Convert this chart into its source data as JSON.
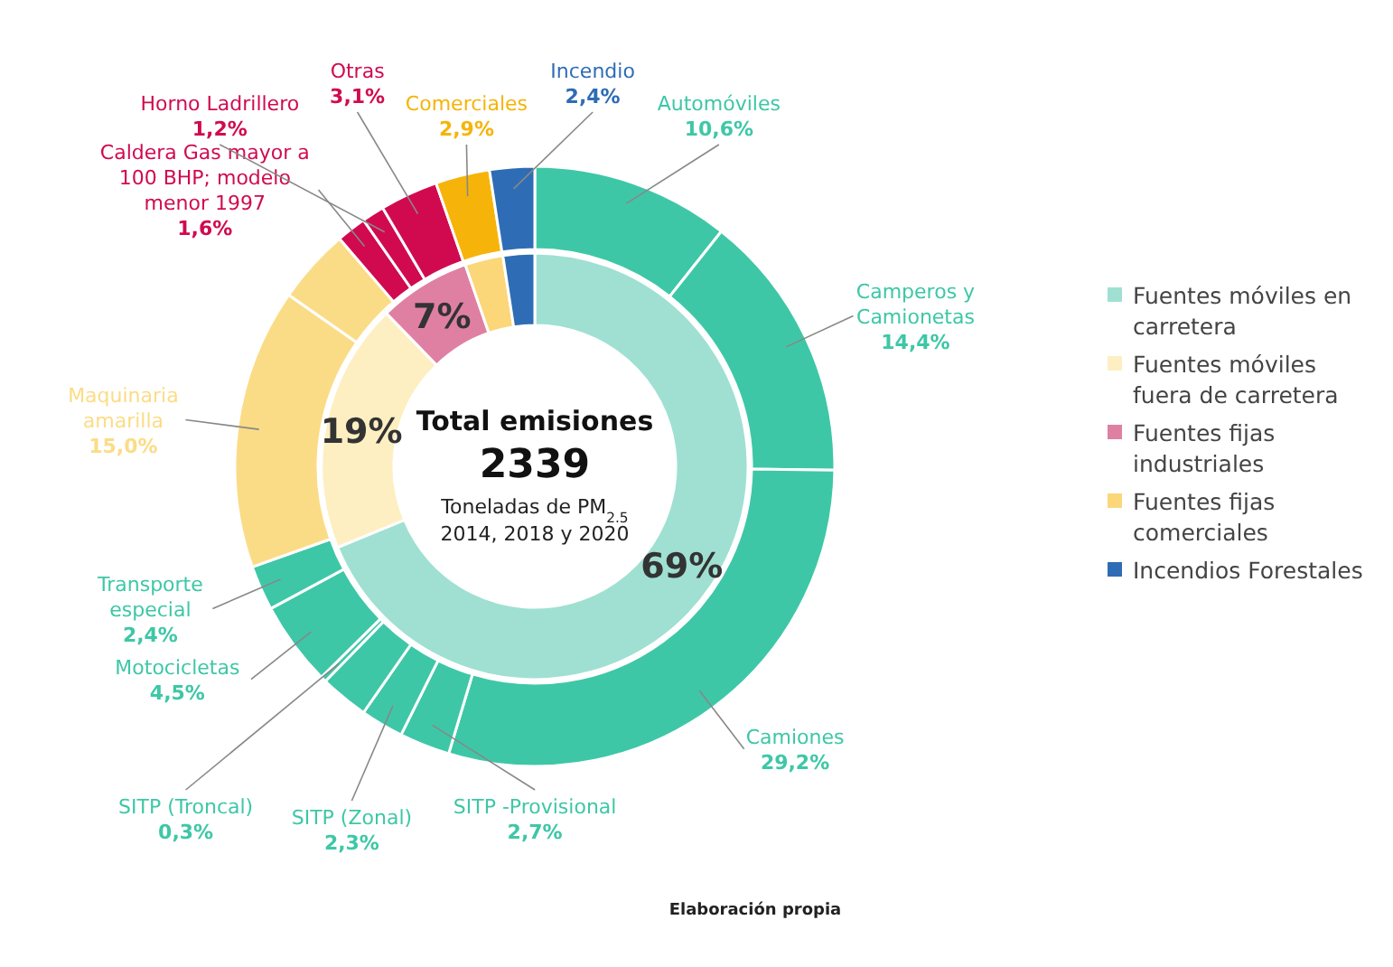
{
  "chart_data": [
    {
      "type": "donut",
      "title": "Total emisiones",
      "annotations": [
        "2339",
        "Toneladas de PM$_{2.5}$",
        "2014, 2018 y 2020",
        "Elaboración propia"
      ],
      "categories": [
        "Fuentes móviles en carretera",
        "Fuentes móviles fuera de carretera",
        "Fuentes fijas industriales",
        "Fuentes fijas comerciales",
        "Incendios Forestales"
      ],
      "values": [
        69,
        19,
        7,
        2.9,
        2.4
      ],
      "colors": [
        "#9fe0d2",
        "#fdefc2",
        "#df80a2",
        "#fbd77a",
        "#2e6db5"
      ],
      "value_labels": [
        "69%",
        "19%",
        "7%",
        null,
        null
      ],
      "legend": "right"
    },
    {
      "type": "donut",
      "categories": [
        "Automóviles",
        "Camperos y Camionetas",
        "Camiones",
        "SITP -Provisional",
        "SITP (Zonal)",
        null,
        "SITP (Troncal)",
        "Motocicletas",
        "Transporte especial",
        "Maquinaria amarilla",
        null,
        "Caldera Gas mayor a 100 BHP; modelo menor 1997",
        "Horno Ladrillero",
        "Otras",
        "Comerciales",
        "Incendio"
      ],
      "values": [
        10.6,
        14.4,
        29.2,
        2.7,
        2.3,
        2.6,
        0.3,
        4.5,
        2.4,
        15.0,
        4.0,
        1.6,
        1.2,
        3.1,
        2.9,
        2.4
      ],
      "colors": [
        "#3ec7a7",
        "#3ec7a7",
        "#3ec7a7",
        "#3ec7a7",
        "#3ec7a7",
        "#3ec7a7",
        "#3ec7a7",
        "#3ec7a7",
        "#3ec7a7",
        "#fbdc86",
        "#fbdc86",
        "#d10a50",
        "#d10a50",
        "#d10a50",
        "#f6b40a",
        "#2e6db5"
      ],
      "value_labels": [
        "10,6%",
        "14,4%",
        "29,2%",
        "2,7%",
        "2,3%",
        null,
        "0,3%",
        "4,5%",
        "2,4%",
        "15,0%",
        null,
        "1,6%",
        "1,2%",
        "3,1%",
        "2,9%",
        "2,4%"
      ]
    }
  ]
}
